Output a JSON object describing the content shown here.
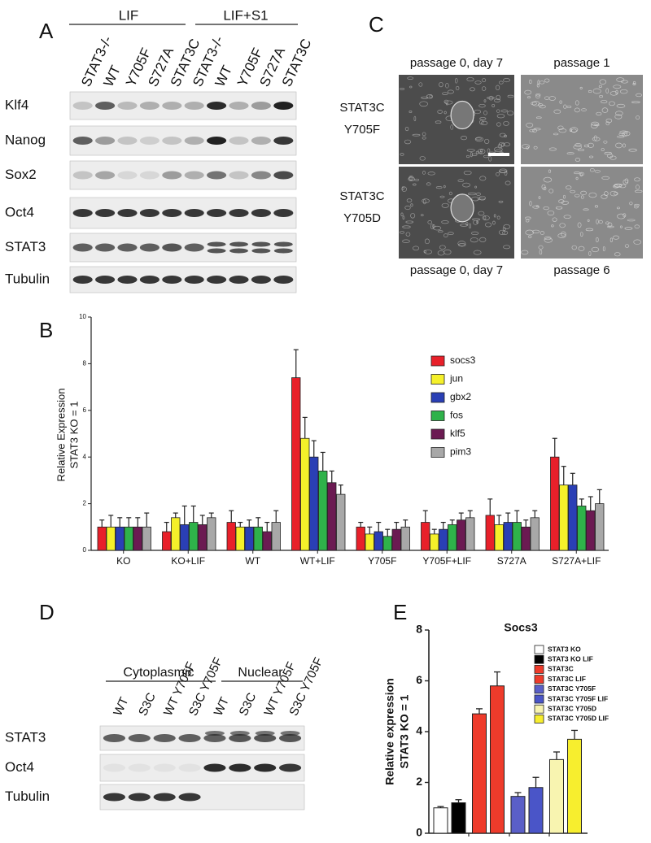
{
  "panel_labels": [
    "A",
    "B",
    "C",
    "D",
    "E"
  ],
  "panel_a": {
    "groups": [
      "LIF",
      "LIF+S1"
    ],
    "lanes": [
      "STAT3-/-",
      "WT",
      "Y705F",
      "S727A",
      "STAT3C",
      "STAT3-/-",
      "WT",
      "Y705F",
      "S727A",
      "STAT3C"
    ],
    "rows": [
      "Klf4",
      "Nanog",
      "Sox2",
      "Oct4",
      "STAT3",
      "Tubulin"
    ]
  },
  "panel_c": {
    "top": [
      "passage 0, day 7",
      "passage 1"
    ],
    "rows": [
      [
        "STAT3C",
        "Y705F"
      ],
      [
        "STAT3C",
        "Y705D"
      ]
    ],
    "bottom": [
      "passage 0, day 7",
      "passage 6"
    ]
  },
  "panel_d": {
    "groups": [
      "Cytoplasmic",
      "Nuclear"
    ],
    "lanes": [
      "WT",
      "S3C",
      "WT Y705F",
      "S3C Y705F",
      "WT",
      "S3C",
      "WT Y705F",
      "S3C Y705F"
    ],
    "rows": [
      "STAT3",
      "Oct4",
      "Tubulin"
    ]
  },
  "chart_data": [
    {
      "type": "grouped-bar",
      "ylabel": [
        "Relative Expression",
        "STAT3 KO = 1"
      ],
      "categories": [
        "KO",
        "KO+LIF",
        "WT",
        "WT+LIF",
        "Y705F",
        "Y705F+LIF",
        "S727A",
        "S727A+LIF"
      ],
      "series": [
        {
          "name": "socs3",
          "color": "#e8202a",
          "values": [
            1.0,
            0.8,
            1.2,
            7.4,
            1.0,
            1.2,
            1.5,
            4.0
          ],
          "errors": [
            0.3,
            0.4,
            0.5,
            1.2,
            0.2,
            0.5,
            0.7,
            0.8
          ]
        },
        {
          "name": "jun",
          "color": "#f5f02a",
          "values": [
            1.0,
            1.4,
            1.0,
            4.8,
            0.7,
            0.7,
            1.1,
            2.8
          ],
          "errors": [
            0.5,
            0.2,
            0.2,
            0.9,
            0.3,
            0.2,
            0.4,
            0.8
          ]
        },
        {
          "name": "gbx2",
          "color": "#2a3fb5",
          "values": [
            1.0,
            1.1,
            1.0,
            4.0,
            0.8,
            0.9,
            1.2,
            2.8
          ],
          "errors": [
            0.4,
            0.8,
            0.3,
            0.7,
            0.4,
            0.3,
            0.4,
            0.5
          ]
        },
        {
          "name": "fos",
          "color": "#2fb24a",
          "values": [
            1.0,
            1.2,
            1.0,
            3.4,
            0.6,
            1.1,
            1.2,
            1.9
          ],
          "errors": [
            0.4,
            0.7,
            0.4,
            0.8,
            0.3,
            0.2,
            0.5,
            0.3
          ]
        },
        {
          "name": "klf5",
          "color": "#6b1a52",
          "values": [
            1.0,
            1.1,
            0.8,
            2.9,
            0.9,
            1.3,
            1.0,
            1.7
          ],
          "errors": [
            0.4,
            0.4,
            0.4,
            0.5,
            0.3,
            0.3,
            0.3,
            0.6
          ]
        },
        {
          "name": "pim3",
          "color": "#a8a8a8",
          "values": [
            1.0,
            1.4,
            1.2,
            2.4,
            1.0,
            1.4,
            1.4,
            2.0
          ],
          "errors": [
            0.6,
            0.2,
            0.5,
            0.4,
            0.3,
            0.3,
            0.3,
            0.6
          ]
        }
      ],
      "ylim": [
        0,
        10
      ],
      "yticks": [
        0,
        2,
        4,
        6,
        8,
        10
      ],
      "legend": "top-right"
    },
    {
      "type": "bar",
      "title": "Socs3",
      "ylabel": [
        "Relative expression",
        "STAT3 KO = 1"
      ],
      "categories": [
        "STAT3 KO",
        "STAT3 KO LIF",
        "STAT3C",
        "STAT3C LIF",
        "STAT3C Y705F",
        "STAT3C Y705F LIF",
        "STAT3C Y705D",
        "STAT3C Y705D LIF"
      ],
      "values": [
        1.0,
        1.2,
        4.7,
        5.8,
        1.45,
        1.8,
        2.9,
        3.7
      ],
      "errors": [
        0.05,
        0.12,
        0.2,
        0.55,
        0.15,
        0.4,
        0.3,
        0.35
      ],
      "colors": [
        "#ffffff",
        "#000000",
        "#ee3b2b",
        "#ee3b2b",
        "#5a5fc8",
        "#4a55c8",
        "#f8f4b0",
        "#f7ee2e"
      ],
      "ylim": [
        0,
        8
      ],
      "yticks": [
        0,
        2,
        4,
        6,
        8
      ],
      "legend": "top-right"
    }
  ]
}
